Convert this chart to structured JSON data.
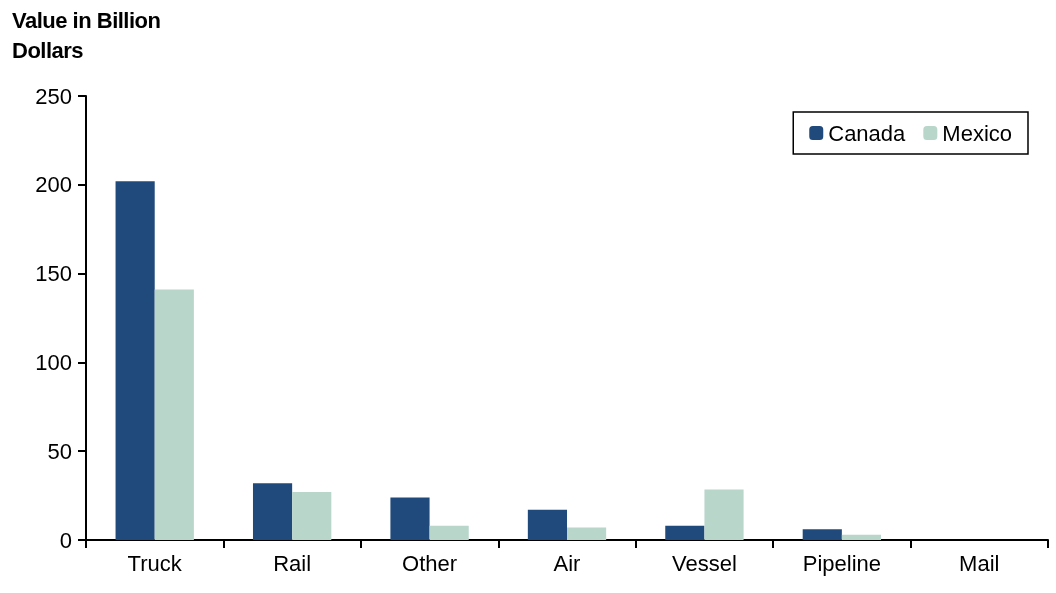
{
  "chart_data": {
    "type": "bar",
    "ylabel": "Value in Billion Dollars",
    "categories": [
      "Truck",
      "Rail",
      "Other",
      "Air",
      "Vessel",
      "Pipeline",
      "Mail"
    ],
    "series": [
      {
        "name": "Canada",
        "color": "#214a7c",
        "values": [
          202,
          32,
          24,
          17,
          8,
          6,
          0
        ]
      },
      {
        "name": "Mexico",
        "color": "#b9d6cb",
        "values": [
          141,
          27,
          8,
          7,
          28.5,
          3,
          0
        ]
      }
    ],
    "ylim": [
      0,
      250
    ],
    "yticks": [
      0,
      50,
      100,
      150,
      200,
      250
    ],
    "grid": false,
    "legend": "top right"
  }
}
